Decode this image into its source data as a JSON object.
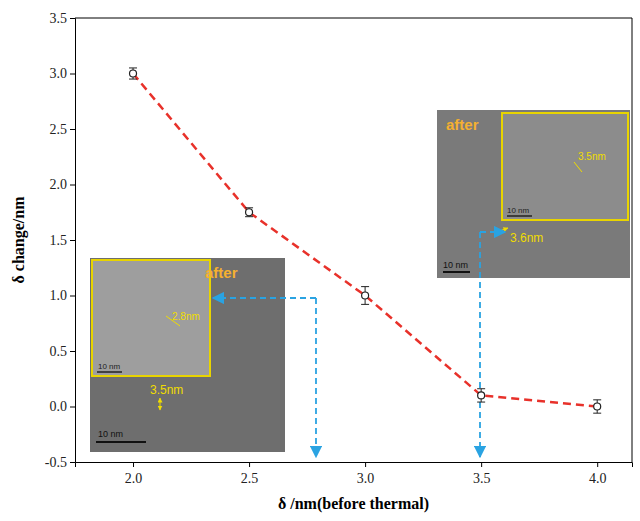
{
  "chart_data": {
    "type": "line",
    "x_label": "δ /nm(before thermal)",
    "y_label": "δ change/nm",
    "x": [
      2.0,
      2.5,
      3.0,
      3.5,
      4.0
    ],
    "series": [
      {
        "values": [
          3.0,
          1.75,
          1.0,
          0.1,
          0.0
        ],
        "errors": [
          0.05,
          0.04,
          0.08,
          0.06,
          0.06
        ],
        "color": "#e8312a",
        "line_style": "dashed",
        "marker": "open-circle"
      }
    ],
    "xlim": [
      1.75,
      4.15
    ],
    "xticks": [
      {
        "value": 2.0,
        "label": "2.0"
      },
      2.5,
      {
        "value": 3.0,
        "label": "3.0"
      },
      3.5,
      {
        "value": 4.0,
        "label": "4.0"
      }
    ],
    "ylim": [
      -0.5,
      3.5
    ],
    "yticks": [
      -0.5,
      {
        "value": 0.0,
        "label": "0.0"
      },
      0.5,
      {
        "value": 1.0,
        "label": "1.0"
      },
      1.5,
      {
        "value": 2.0,
        "label": "2.0"
      },
      2.5,
      {
        "value": 3.0,
        "label": "3.0"
      },
      3.5
    ],
    "annotations": [
      {
        "label": "after",
        "measure": "3.5nm",
        "scale_bar": "10 nm",
        "zoom": {
          "measure": "2.8nm",
          "scale_bar": "10 nm"
        }
      },
      {
        "label": "after",
        "measure": "3.6nm",
        "scale_bar": "10 nm",
        "zoom": {
          "measure": "3.5nm",
          "scale_bar": "10 nm"
        }
      }
    ]
  }
}
